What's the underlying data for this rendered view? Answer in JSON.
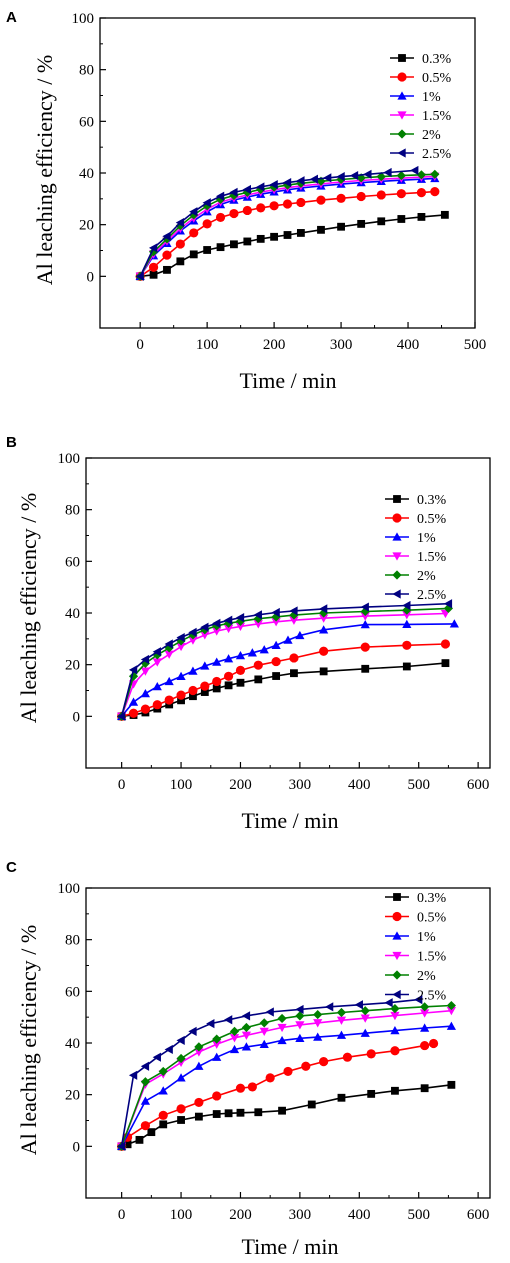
{
  "chart_data": [
    {
      "type": "line",
      "panel_label": "A",
      "xlabel": "Time / min",
      "ylabel": "Al leaching efficiency / %",
      "xlim": [
        -60,
        500
      ],
      "ylim": [
        -20,
        100
      ],
      "xticks": [
        "0",
        "100",
        "200",
        "300",
        "400",
        "500"
      ],
      "yticks": [
        "0",
        "20",
        "40",
        "60",
        "80",
        "100"
      ],
      "xtick_values": [
        0,
        100,
        200,
        300,
        400,
        500
      ],
      "ytick_values": [
        0,
        20,
        40,
        60,
        80,
        100
      ],
      "legend_position": "top-right",
      "grid": false,
      "series": [
        {
          "name": "0.3%",
          "marker": "square",
          "color": "#000000",
          "x": [
            0,
            20,
            40,
            60,
            80,
            100,
            120,
            140,
            160,
            180,
            200,
            220,
            240,
            270,
            300,
            330,
            360,
            390,
            420,
            455
          ],
          "y": [
            0,
            0.6,
            2.5,
            5.8,
            8.5,
            10.2,
            11.3,
            12.4,
            13.5,
            14.5,
            15.3,
            16.0,
            16.8,
            18.0,
            19.2,
            20.3,
            21.3,
            22.2,
            23.0,
            23.8
          ]
        },
        {
          "name": "0.5%",
          "marker": "circle",
          "color": "#ff0000",
          "x": [
            0,
            20,
            40,
            60,
            80,
            100,
            120,
            140,
            160,
            180,
            200,
            220,
            240,
            270,
            300,
            330,
            360,
            390,
            420,
            440
          ],
          "y": [
            0,
            3.5,
            8.2,
            12.5,
            16.8,
            20.3,
            22.8,
            24.3,
            25.5,
            26.5,
            27.3,
            28.0,
            28.6,
            29.5,
            30.2,
            30.9,
            31.5,
            32.0,
            32.4,
            32.8
          ]
        },
        {
          "name": "1%",
          "marker": "triangle-up",
          "color": "#0000ff",
          "x": [
            0,
            20,
            40,
            60,
            80,
            100,
            120,
            140,
            160,
            180,
            200,
            220,
            240,
            270,
            300,
            330,
            360,
            390,
            420,
            440
          ],
          "y": [
            0,
            8.0,
            12.8,
            17.6,
            21.5,
            25.0,
            27.8,
            29.5,
            30.7,
            31.8,
            32.7,
            33.5,
            34.2,
            35.0,
            35.7,
            36.3,
            36.8,
            37.2,
            37.6,
            37.9
          ]
        },
        {
          "name": "1.5%",
          "marker": "triangle-down",
          "color": "#ff00ff",
          "x": [
            0,
            20,
            40,
            60,
            80,
            100,
            120,
            140,
            160,
            180,
            200,
            220,
            240,
            270,
            300,
            330,
            360,
            390,
            420,
            440
          ],
          "y": [
            0,
            8.6,
            13.6,
            18.5,
            22.5,
            26.0,
            28.7,
            30.3,
            31.5,
            32.6,
            33.5,
            34.3,
            35.0,
            35.8,
            36.5,
            37.1,
            37.6,
            38.0,
            38.4,
            38.7
          ]
        },
        {
          "name": "2%",
          "marker": "diamond",
          "color": "#008000",
          "x": [
            0,
            20,
            40,
            60,
            80,
            100,
            120,
            140,
            160,
            180,
            200,
            220,
            240,
            270,
            300,
            330,
            360,
            390,
            420,
            440
          ],
          "y": [
            0,
            9.5,
            14.5,
            19.6,
            23.8,
            27.3,
            29.8,
            31.3,
            32.5,
            33.6,
            34.5,
            35.3,
            36.0,
            36.8,
            37.5,
            38.1,
            38.6,
            39.0,
            39.3,
            39.5
          ]
        },
        {
          "name": "2.5%",
          "marker": "triangle-left",
          "color": "#000080",
          "x": [
            0,
            20,
            40,
            60,
            80,
            100,
            120,
            140,
            160,
            180,
            200,
            220,
            240,
            260,
            280,
            300,
            320,
            340,
            370,
            410
          ],
          "y": [
            0,
            11.0,
            15.5,
            20.8,
            25.0,
            28.5,
            31.0,
            32.5,
            33.6,
            34.6,
            35.5,
            36.3,
            37.0,
            37.6,
            38.1,
            38.6,
            39.0,
            39.5,
            40.2,
            41.0
          ]
        }
      ]
    },
    {
      "type": "line",
      "panel_label": "B",
      "xlabel": "Time / min",
      "ylabel": "Al leaching efficiency / %",
      "xlim": [
        -60,
        620
      ],
      "ylim": [
        -20,
        100
      ],
      "xticks": [
        "0",
        "100",
        "200",
        "300",
        "400",
        "500",
        "600"
      ],
      "yticks": [
        "0",
        "20",
        "40",
        "60",
        "80",
        "100"
      ],
      "xtick_values": [
        0,
        100,
        200,
        300,
        400,
        500,
        600
      ],
      "ytick_values": [
        0,
        20,
        40,
        60,
        80,
        100
      ],
      "legend_position": "top-right",
      "grid": false,
      "series": [
        {
          "name": "0.3%",
          "marker": "square",
          "color": "#000000",
          "x": [
            0,
            20,
            40,
            60,
            80,
            100,
            120,
            140,
            160,
            180,
            200,
            230,
            260,
            290,
            340,
            410,
            480,
            545
          ],
          "y": [
            0,
            0.5,
            1.5,
            3.0,
            4.6,
            6.2,
            7.8,
            9.4,
            10.8,
            12.0,
            13.0,
            14.3,
            15.6,
            16.7,
            17.4,
            18.4,
            19.3,
            20.6
          ]
        },
        {
          "name": "0.5%",
          "marker": "circle",
          "color": "#ff0000",
          "x": [
            0,
            20,
            40,
            60,
            80,
            100,
            120,
            140,
            160,
            180,
            200,
            230,
            260,
            290,
            340,
            410,
            480,
            545
          ],
          "y": [
            0,
            1.2,
            2.8,
            4.5,
            6.3,
            8.2,
            10.0,
            11.7,
            13.5,
            15.5,
            17.8,
            19.8,
            21.2,
            22.6,
            25.2,
            26.8,
            27.5,
            28.0
          ]
        },
        {
          "name": "1%",
          "marker": "triangle-up",
          "color": "#0000ff",
          "x": [
            0,
            20,
            40,
            60,
            80,
            100,
            120,
            140,
            160,
            180,
            200,
            220,
            240,
            260,
            280,
            300,
            340,
            410,
            480,
            560
          ],
          "y": [
            0,
            5.5,
            8.8,
            11.5,
            13.5,
            15.5,
            17.5,
            19.5,
            21.0,
            22.3,
            23.5,
            24.6,
            25.8,
            27.5,
            29.5,
            31.3,
            33.5,
            35.5,
            35.6,
            35.8
          ]
        },
        {
          "name": "1.5%",
          "marker": "triangle-down",
          "color": "#ff00ff",
          "x": [
            0,
            20,
            40,
            60,
            80,
            100,
            120,
            140,
            160,
            180,
            200,
            230,
            260,
            290,
            340,
            410,
            480,
            545
          ],
          "y": [
            0,
            12.5,
            17.5,
            21.0,
            24.0,
            27.0,
            29.5,
            31.5,
            33.0,
            34.0,
            34.8,
            35.8,
            36.6,
            37.2,
            38.0,
            38.8,
            39.3,
            39.8
          ]
        },
        {
          "name": "2%",
          "marker": "diamond",
          "color": "#008000",
          "x": [
            0,
            20,
            40,
            60,
            80,
            100,
            120,
            140,
            160,
            180,
            200,
            230,
            260,
            290,
            340,
            410,
            480,
            550
          ],
          "y": [
            0,
            15.5,
            20.5,
            23.8,
            26.5,
            29.2,
            31.5,
            33.5,
            35.0,
            36.0,
            36.8,
            37.8,
            38.5,
            39.2,
            40.0,
            40.6,
            41.1,
            41.8
          ]
        },
        {
          "name": "2.5%",
          "marker": "triangle-left",
          "color": "#000080",
          "x": [
            0,
            20,
            40,
            60,
            80,
            100,
            120,
            140,
            160,
            180,
            200,
            230,
            260,
            290,
            340,
            410,
            480,
            550
          ],
          "y": [
            0,
            18.0,
            22.0,
            25.0,
            28.0,
            30.5,
            32.5,
            34.5,
            36.0,
            37.2,
            38.2,
            39.3,
            40.2,
            40.8,
            41.6,
            42.3,
            42.9,
            43.6
          ]
        }
      ]
    },
    {
      "type": "line",
      "panel_label": "C",
      "xlabel": "Time / min",
      "ylabel": "Al leaching efficiency / %",
      "xlim": [
        -60,
        620
      ],
      "ylim": [
        -20,
        100
      ],
      "xticks": [
        "0",
        "100",
        "200",
        "300",
        "400",
        "500",
        "600"
      ],
      "yticks": [
        "0",
        "20",
        "40",
        "60",
        "80",
        "100"
      ],
      "xtick_values": [
        0,
        100,
        200,
        300,
        400,
        500,
        600
      ],
      "ytick_values": [
        0,
        20,
        40,
        60,
        80,
        100
      ],
      "legend_position": "top-right",
      "grid": false,
      "series": [
        {
          "name": "0.3%",
          "marker": "square",
          "color": "#000000",
          "x": [
            0,
            10,
            30,
            50,
            70,
            100,
            130,
            160,
            180,
            200,
            230,
            270,
            320,
            370,
            420,
            460,
            510,
            555
          ],
          "y": [
            0,
            0.8,
            2.5,
            5.5,
            8.5,
            10.2,
            11.5,
            12.5,
            12.8,
            13.0,
            13.2,
            13.8,
            16.2,
            18.8,
            20.3,
            21.5,
            22.5,
            23.8
          ]
        },
        {
          "name": "0.5%",
          "marker": "circle",
          "color": "#ff0000",
          "x": [
            0,
            10,
            40,
            70,
            100,
            130,
            160,
            200,
            220,
            250,
            280,
            310,
            340,
            380,
            420,
            460,
            510,
            525
          ],
          "y": [
            0,
            3.5,
            8.0,
            12.0,
            14.5,
            17.0,
            19.5,
            22.5,
            23.0,
            26.5,
            29.0,
            31.0,
            32.8,
            34.5,
            35.8,
            37.0,
            39.0,
            39.8
          ]
        },
        {
          "name": "1%",
          "marker": "triangle-up",
          "color": "#0000ff",
          "x": [
            0,
            40,
            70,
            100,
            130,
            160,
            190,
            210,
            240,
            270,
            300,
            330,
            370,
            410,
            460,
            510,
            555
          ],
          "y": [
            0,
            17.5,
            21.5,
            26.5,
            31.0,
            34.5,
            37.5,
            38.5,
            39.5,
            41.0,
            41.8,
            42.3,
            43.0,
            43.8,
            44.8,
            45.8,
            46.5
          ]
        },
        {
          "name": "1.5%",
          "marker": "triangle-down",
          "color": "#ff00ff",
          "x": [
            0,
            40,
            70,
            100,
            130,
            160,
            190,
            210,
            240,
            270,
            300,
            330,
            370,
            410,
            460,
            510,
            555
          ],
          "y": [
            0,
            24.0,
            28.0,
            32.5,
            36.5,
            39.5,
            42.0,
            43.0,
            44.5,
            46.0,
            47.0,
            47.8,
            48.8,
            49.6,
            50.6,
            51.6,
            52.5
          ]
        },
        {
          "name": "2%",
          "marker": "diamond",
          "color": "#008000",
          "x": [
            0,
            40,
            70,
            100,
            130,
            160,
            190,
            210,
            240,
            270,
            300,
            330,
            370,
            410,
            460,
            510,
            555
          ],
          "y": [
            0,
            25.0,
            29.0,
            34.0,
            38.5,
            41.5,
            44.5,
            46.0,
            47.8,
            49.5,
            50.5,
            51.0,
            51.8,
            52.5,
            53.3,
            54.0,
            54.5
          ]
        },
        {
          "name": "2.5%",
          "marker": "triangle-left",
          "color": "#000080",
          "x": [
            0,
            20,
            40,
            60,
            80,
            100,
            120,
            150,
            180,
            210,
            250,
            300,
            350,
            400,
            450,
            500
          ],
          "y": [
            0,
            27.5,
            31.0,
            34.5,
            37.5,
            41.0,
            44.5,
            47.5,
            49.0,
            50.5,
            52.0,
            53.0,
            54.0,
            54.8,
            55.6,
            56.8
          ]
        }
      ]
    }
  ]
}
